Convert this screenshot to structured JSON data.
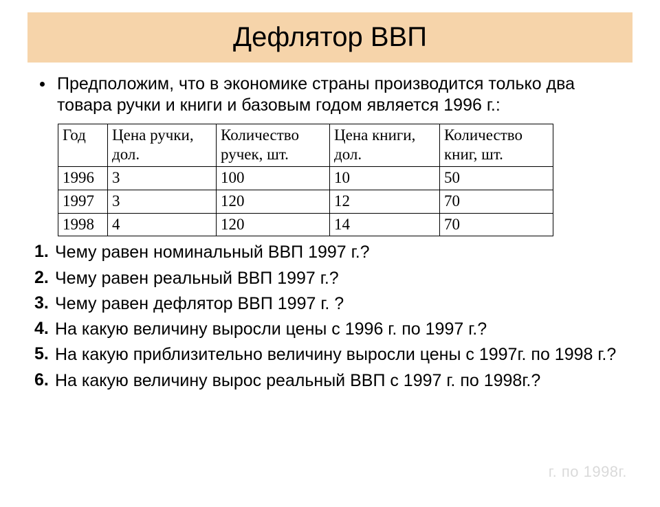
{
  "title": "Дефлятор ВВП",
  "intro": "Предположим, что в экономике страны производится только два товара ручки и книги и базовым годом является 1996 г.:",
  "table": {
    "columns": [
      "Год",
      "Цена ручки, дол.",
      "Количество ручек, шт.",
      "Цена книги, дол.",
      "Количество книг, шт."
    ],
    "rows": [
      [
        "1996",
        "3",
        "100",
        "10",
        "50"
      ],
      [
        "1997",
        "3",
        "120",
        "12",
        "70"
      ],
      [
        "1998",
        "4",
        "120",
        "14",
        "70"
      ]
    ]
  },
  "questions": [
    {
      "num": "1.",
      "text": "Чему равен номинальный ВВП 1997 г.?"
    },
    {
      "num": "2.",
      "text": "Чему равен реальный ВВП 1997 г.?"
    },
    {
      "num": "3.",
      "text": "Чему равен дефлятор ВВП 1997 г. ?"
    },
    {
      "num": "4.",
      "text": "На какую величину выросли цены с 1996 г. по 1997 г.?"
    },
    {
      "num": "5.",
      "text": "На какую приблизительно величину выросли цены с 1997г. по 1998 г.?"
    },
    {
      "num": "6.",
      "text": "На какую величину вырос реальный ВВП с 1997 г. по 1998г.?"
    }
  ],
  "watermark": "г. по 1998г."
}
